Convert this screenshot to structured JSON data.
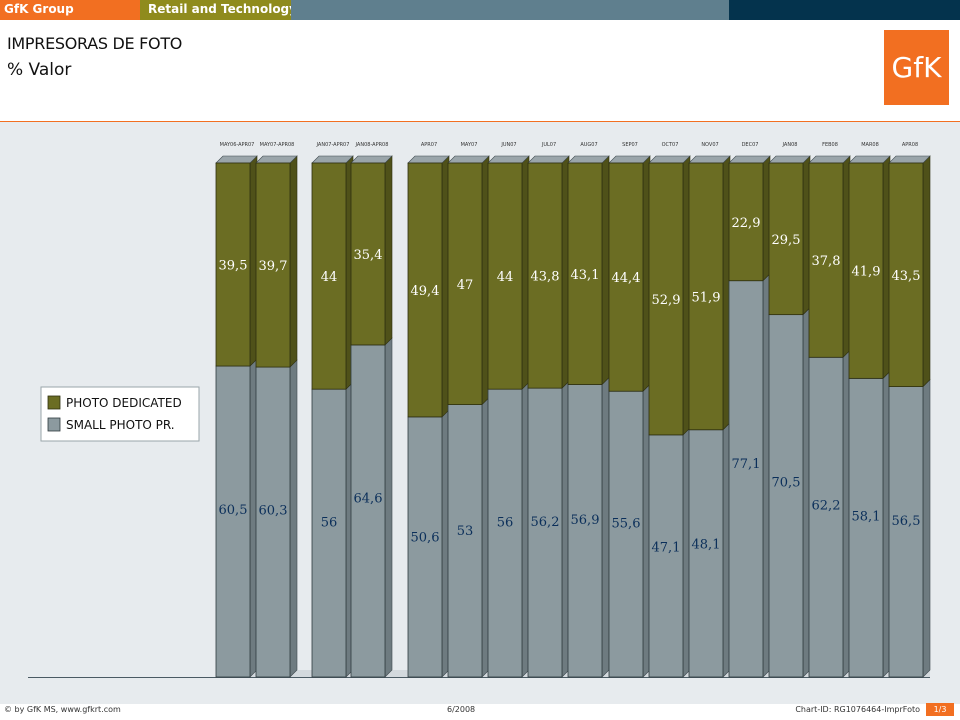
{
  "header": {
    "company": "GfK Group",
    "division": "Retail and Technology"
  },
  "title": "IMPRESORAS DE FOTO",
  "subtitle": "% Valor",
  "logo_text": "GfK",
  "colors": {
    "orange": "#f26f21",
    "olive_header": "#8f8b1d",
    "slate": "#5f7f8e",
    "navy": "#04334d",
    "chart_bg": "#e7ebee",
    "photo_dedicated": "#6b6d23",
    "small_photo": "#8c9a9f",
    "label_light": "#ffffff",
    "label_dark": "#0b2f5a"
  },
  "chart_data": {
    "type": "bar",
    "stacked": true,
    "percent": true,
    "categories": [
      "MAY06-APR07",
      "MAY07-APR08",
      "JAN07-APR07",
      "JAN08-APR08",
      "APR07",
      "MAY07",
      "JUN07",
      "JUL07",
      "AUG07",
      "SEP07",
      "OCT07",
      "NOV07",
      "DEC07",
      "JAN08",
      "FEB08",
      "MAR08",
      "APR08"
    ],
    "groups": [
      [
        0,
        1
      ],
      [
        2,
        3
      ],
      [
        4,
        5,
        6,
        7,
        8,
        9,
        10,
        11,
        12,
        13,
        14,
        15,
        16
      ]
    ],
    "series": [
      {
        "name": "SMALL PHOTO PR.",
        "values": [
          "60,5",
          "60,3",
          "56",
          "64,6",
          "50,6",
          "53",
          "56",
          "56,2",
          "56,9",
          "55,6",
          "47,1",
          "48,1",
          "77,1",
          "70,5",
          "62,2",
          "58,1",
          "56,5"
        ]
      },
      {
        "name": "PHOTO DEDICATED",
        "values": [
          "39,5",
          "39,7",
          "44",
          "35,4",
          "49,4",
          "47",
          "44",
          "43,8",
          "43,1",
          "44,4",
          "52,9",
          "51,9",
          "22,9",
          "29,5",
          "37,8",
          "41,9",
          "43,5"
        ]
      }
    ],
    "legend": {
      "position": "left",
      "entries": [
        "PHOTO DEDICATED",
        "SMALL PHOTO PR."
      ]
    },
    "ylim": [
      0,
      100
    ]
  },
  "footer": {
    "copyright": "© by GfK MS, www.gfkrt.com",
    "date": "6/2008",
    "chart_id": "Chart-ID: RG1076464-ImprFoto",
    "page": "1/3"
  }
}
